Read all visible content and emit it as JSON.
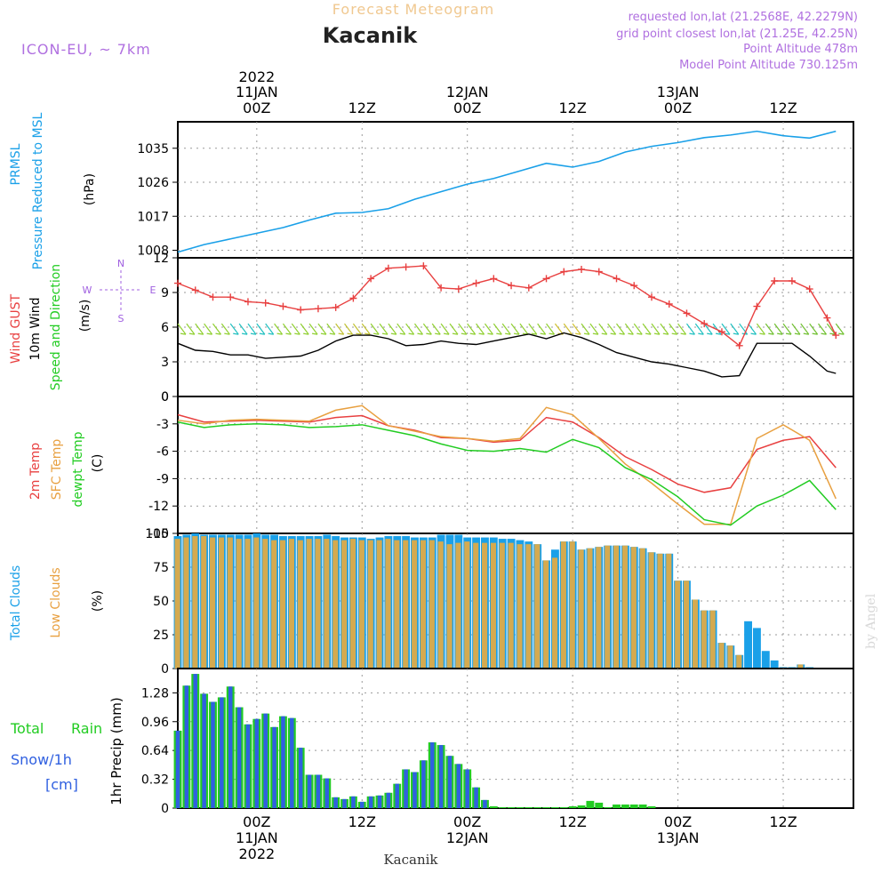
{
  "header": {
    "title": "Forecast Meteogram",
    "location": "Kacanik",
    "model": "ICON-EU, ~ 7km",
    "requested": "requested lon,lat (21.2568E, 42.2279N)",
    "gridpoint": "grid point closest lon,lat (21.25E, 42.25N)",
    "altitude": "Point Altitude 478m",
    "model_altitude": "Model Point Altitude 730.125m",
    "footer_location": "Kacanik",
    "watermark": "by Angel"
  },
  "time_axis": {
    "year": "2022",
    "ticks": [
      "00Z",
      "12Z",
      "00Z",
      "12Z",
      "00Z",
      "12Z"
    ],
    "dates": [
      "11JAN",
      "12JAN",
      "13JAN"
    ]
  },
  "colors": {
    "pressure": "#1aa0e8",
    "gust": "#e84040",
    "wind": "#000000",
    "temp2m": "#e84040",
    "sfctemp": "#e8a040",
    "dewpt": "#22cc22",
    "totalcloud": "#1aa0e8",
    "lowcloud": "#d4aa50",
    "rain": "#22cc22",
    "snow": "#3060e0",
    "label_purple": "#a060e0"
  },
  "panels": {
    "pressure": {
      "label1": "PRMSL",
      "label2": "Pressure Reduced to MSL",
      "unit": "(hPa)"
    },
    "wind": {
      "label1": "Wind GUST",
      "label2": "10m Wind",
      "label3": "Speed and Direction",
      "unit": "(m/s)",
      "compass_n": "N",
      "compass_s": "S",
      "compass_e": "E",
      "compass_w": "W"
    },
    "temp": {
      "label1": "2m Temp",
      "label2": "SFC Temp",
      "label3": "dewpt Temp",
      "unit": "(C)"
    },
    "clouds": {
      "label1": "Total Clouds",
      "label2": "Low Clouds",
      "unit": "(%)"
    },
    "precip": {
      "label1": "Total",
      "label2": "Rain",
      "label3": "Snow/1h",
      "label4": "[cm]",
      "unit": "1hr Precip (mm)"
    }
  },
  "chart_data": [
    {
      "type": "line",
      "name": "PRMSL",
      "ylim": [
        1006,
        1042
      ],
      "yticks": [
        "1008",
        "1017",
        "1026",
        "1035"
      ],
      "x_hours": [
        -9,
        -6,
        -3,
        0,
        3,
        6,
        9,
        12,
        15,
        18,
        21,
        24,
        27,
        30,
        33,
        36,
        39,
        42,
        45,
        48,
        51,
        54,
        57,
        60,
        63,
        66
      ],
      "values": [
        1007.5,
        1009.5,
        1011,
        1012.5,
        1014,
        1016,
        1017.8,
        1018,
        1019,
        1021.5,
        1023.5,
        1025.5,
        1027,
        1029,
        1031,
        1030,
        1031.5,
        1034,
        1035.5,
        1036.5,
        1037.8,
        1038.5,
        1039.5,
        1038.3,
        1037.7,
        1039.5
      ]
    },
    {
      "type": "line",
      "name": "Wind",
      "ylim": [
        0,
        12
      ],
      "yticks": [
        "0",
        "3",
        "6",
        "9",
        "12"
      ],
      "x_hours": [
        -9,
        -7,
        -5,
        -3,
        -1,
        1,
        3,
        5,
        7,
        9,
        11,
        13,
        15,
        17,
        19,
        21,
        23,
        25,
        27,
        29,
        31,
        33,
        35,
        37,
        39,
        41,
        43,
        45,
        47,
        49,
        51,
        53,
        55,
        57,
        59,
        61,
        63,
        65,
        66
      ],
      "gust": [
        9.8,
        9.2,
        8.6,
        8.6,
        8.2,
        8.1,
        7.8,
        7.5,
        7.6,
        7.7,
        8.5,
        10.2,
        11.1,
        11.2,
        11.3,
        9.4,
        9.3,
        9.8,
        10.2,
        9.6,
        9.4,
        10.2,
        10.8,
        11.0,
        10.8,
        10.2,
        9.6,
        8.6,
        8.0,
        7.2,
        6.3,
        5.6,
        4.4,
        7.8,
        10.0,
        10.0,
        9.3,
        6.8,
        5.3
      ],
      "wind": [
        4.6,
        4.0,
        3.9,
        3.6,
        3.6,
        3.3,
        3.4,
        3.5,
        4.0,
        4.8,
        5.3,
        5.3,
        5.0,
        4.4,
        4.5,
        4.8,
        4.6,
        4.5,
        4.8,
        5.1,
        5.4,
        5.0,
        5.5,
        5.1,
        4.5,
        3.8,
        3.4,
        3.0,
        2.8,
        2.5,
        2.2,
        1.7,
        1.8,
        4.6,
        4.6,
        4.6,
        3.5,
        2.2,
        2.0
      ]
    },
    {
      "type": "line",
      "name": "Temperature",
      "ylim": [
        -15,
        0
      ],
      "yticks": [
        "0",
        "-3",
        "-6",
        "-9",
        "-12",
        "-15"
      ],
      "x_hours": [
        -9,
        -6,
        -3,
        0,
        3,
        6,
        9,
        12,
        15,
        18,
        21,
        24,
        27,
        30,
        33,
        36,
        39,
        42,
        45,
        48,
        51,
        54,
        57,
        60,
        63,
        66
      ],
      "temp2m": [
        -2.0,
        -2.8,
        -2.7,
        -2.6,
        -2.7,
        -2.8,
        -2.3,
        -2.1,
        -3.2,
        -3.7,
        -4.5,
        -4.6,
        -5.0,
        -4.8,
        -2.3,
        -2.8,
        -4.5,
        -6.6,
        -8.0,
        -9.6,
        -10.5,
        -10.0,
        -5.8,
        -4.8,
        -4.4,
        -7.8
      ],
      "sfctemp": [
        -2.6,
        -3.0,
        -2.6,
        -2.5,
        -2.6,
        -2.7,
        -1.5,
        -1.0,
        -3.2,
        -3.8,
        -4.4,
        -4.6,
        -4.9,
        -4.6,
        -1.2,
        -2.0,
        -4.6,
        -7.4,
        -9.5,
        -11.8,
        -14.0,
        -14.0,
        -4.6,
        -3.1,
        -4.8,
        -11.2
      ],
      "dewpt": [
        -2.8,
        -3.4,
        -3.1,
        -3.0,
        -3.1,
        -3.4,
        -3.3,
        -3.1,
        -3.7,
        -4.3,
        -5.2,
        -5.9,
        -6.0,
        -5.7,
        -6.1,
        -4.7,
        -5.6,
        -7.8,
        -9.1,
        -11.0,
        -13.5,
        -14.1,
        -12.0,
        -10.8,
        -9.2,
        -12.4
      ]
    },
    {
      "type": "bar",
      "name": "Clouds",
      "ylim": [
        0,
        100
      ],
      "yticks": [
        "0",
        "25",
        "50",
        "75",
        "100"
      ],
      "x_hours_start": -9,
      "total": [
        98,
        99,
        100,
        99,
        99,
        99,
        99,
        99,
        99,
        100,
        99,
        99,
        98,
        98,
        98,
        98,
        98,
        99,
        98,
        97,
        97,
        97,
        96,
        97,
        98,
        98,
        98,
        97,
        97,
        97,
        99,
        99,
        99,
        97,
        97,
        97,
        97,
        96,
        96,
        95,
        94,
        92,
        80,
        88,
        94,
        94,
        88,
        89,
        90,
        91,
        91,
        91,
        90,
        89,
        86,
        85,
        85,
        65,
        65,
        51,
        43,
        43,
        19,
        17,
        10,
        35,
        30,
        13,
        6,
        1,
        1,
        3,
        1,
        0
      ],
      "low": [
        96,
        97,
        98,
        98,
        97,
        97,
        97,
        96,
        96,
        97,
        96,
        95,
        95,
        96,
        95,
        96,
        96,
        96,
        95,
        95,
        96,
        95,
        95,
        95,
        96,
        95,
        95,
        95,
        95,
        95,
        94,
        92,
        93,
        94,
        93,
        93,
        93,
        93,
        93,
        92,
        92,
        92,
        80,
        82,
        94,
        94,
        88,
        89,
        90,
        91,
        91,
        91,
        90,
        89,
        86,
        85,
        85,
        65,
        65,
        51,
        43,
        43,
        19,
        17,
        10,
        0,
        0,
        0,
        0,
        0,
        0,
        3,
        0,
        0
      ]
    },
    {
      "type": "bar",
      "name": "Precipitation",
      "ylim": [
        0,
        1.55
      ],
      "yticks": [
        "0",
        "0.32",
        "0.64",
        "0.96",
        "1.28"
      ],
      "x_hours_start": -9,
      "total": [
        0.86,
        1.36,
        1.49,
        1.27,
        1.18,
        1.23,
        1.35,
        1.12,
        0.93,
        0.99,
        1.05,
        0.9,
        1.02,
        1.0,
        0.67,
        0.37,
        0.37,
        0.33,
        0.12,
        0.1,
        0.13,
        0.07,
        0.13,
        0.14,
        0.17,
        0.27,
        0.43,
        0.4,
        0.53,
        0.73,
        0.7,
        0.58,
        0.49,
        0.43,
        0.23,
        0.09,
        0.02,
        0.01,
        0.01,
        0.01,
        0.01,
        0.01,
        0.01,
        0.01,
        0.01,
        0.02,
        0.03,
        0.08,
        0.06,
        0.01,
        0.04,
        0.04,
        0.04,
        0.04,
        0.02,
        0.0,
        0.0,
        0.0,
        0.0,
        0.0,
        0.0,
        0.0,
        0.0,
        0.0,
        0.0,
        0.0,
        0.0,
        0.0,
        0.0,
        0.0,
        0.0,
        0.0,
        0.0,
        0.0
      ],
      "snow": [
        0.86,
        1.36,
        1.49,
        1.27,
        1.18,
        1.23,
        1.35,
        1.12,
        0.93,
        0.99,
        1.05,
        0.9,
        1.02,
        1.0,
        0.67,
        0.37,
        0.37,
        0.33,
        0.12,
        0.1,
        0.13,
        0.07,
        0.13,
        0.14,
        0.17,
        0.27,
        0.43,
        0.4,
        0.53,
        0.73,
        0.7,
        0.58,
        0.49,
        0.43,
        0.23,
        0.09,
        0.0,
        0.0,
        0.0,
        0.0,
        0.0,
        0.0,
        0.0,
        0.0,
        0.0,
        0.0,
        0.0,
        0.0,
        0.0,
        0.0,
        0.0,
        0.0,
        0.0,
        0.0,
        0.0,
        0.0,
        0.0,
        0.0,
        0.0,
        0.0,
        0.0,
        0.0,
        0.0,
        0.0,
        0.0,
        0.0,
        0.0,
        0.0,
        0.0,
        0.0,
        0.0,
        0.0,
        0.0,
        0.0
      ]
    }
  ]
}
